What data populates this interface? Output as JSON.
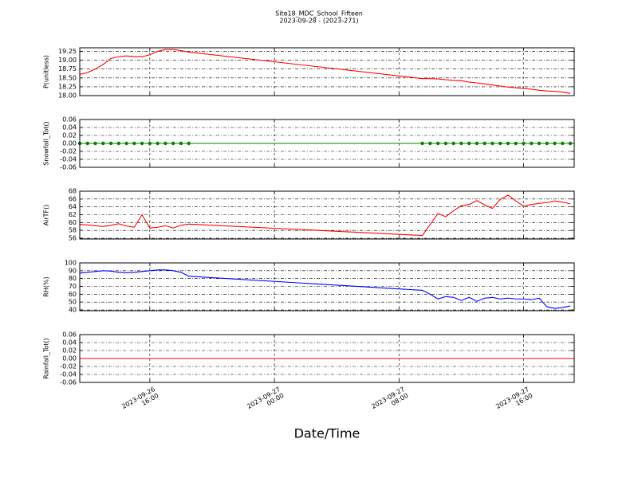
{
  "figure": {
    "title": "Site18_MDC_School_Fifteen",
    "subtitle": "2023-09-28 - (2023-271)",
    "x_label": "Date/Time",
    "xlim": [
      "2023-09-26 11:30",
      "2023-09-27 19:15"
    ],
    "xticks": [
      {
        "value": "2023-09-26 16:00",
        "label": "2023-09-26\n16:00"
      },
      {
        "value": "2023-09-27 00:00",
        "label": "2023-09-27\n00:00"
      },
      {
        "value": "2023-09-27 08:00",
        "label": "2023-09-27\n08:00"
      },
      {
        "value": "2023-09-27 16:00",
        "label": "2023-09-27\n16:00"
      }
    ],
    "grid": true
  },
  "chart_data": [
    {
      "type": "line",
      "y_label": "P(unitless)",
      "ylim": [
        18.0,
        19.35
      ],
      "yticks": [
        {
          "value": 18,
          "label": "18.00"
        },
        18.25,
        {
          "value": 18.5,
          "label": "18.50"
        },
        18.75,
        {
          "value": 19,
          "label": "19.00"
        },
        19.25
      ],
      "x": [
        "2023-09-26 11:30",
        "2023-09-26 12:00",
        "2023-09-26 12:30",
        "2023-09-26 13:00",
        "2023-09-26 13:30",
        "2023-09-26 14:00",
        "2023-09-26 14:30",
        "2023-09-26 15:00",
        "2023-09-26 15:30",
        "2023-09-26 16:00",
        "2023-09-26 16:30",
        "2023-09-26 17:00",
        "2023-09-26 17:30",
        "2023-09-26 18:00",
        "2023-09-26 18:30",
        "2023-09-27 09:30",
        "2023-09-27 10:00",
        "2023-09-27 10:30",
        "2023-09-27 11:00",
        "2023-09-27 11:30",
        "2023-09-27 12:00",
        "2023-09-27 12:30",
        "2023-09-27 13:00",
        "2023-09-27 13:30",
        "2023-09-27 14:00",
        "2023-09-27 14:30",
        "2023-09-27 15:00",
        "2023-09-27 15:30",
        "2023-09-27 16:00",
        "2023-09-27 16:30",
        "2023-09-27 17:00",
        "2023-09-27 17:30",
        "2023-09-27 18:00",
        "2023-09-27 18:30",
        "2023-09-27 19:00"
      ],
      "series": [
        {
          "color": "#ff0000",
          "values": [
            18.6,
            18.65,
            18.75,
            18.88,
            19.05,
            19.1,
            19.12,
            19.1,
            19.1,
            19.15,
            19.25,
            19.3,
            19.3,
            19.27,
            19.23,
            18.48,
            18.48,
            18.47,
            18.45,
            18.43,
            18.42,
            18.38,
            18.36,
            18.33,
            18.3,
            18.27,
            18.24,
            18.22,
            18.2,
            18.18,
            18.15,
            18.13,
            18.12,
            18.1,
            18.06
          ]
        }
      ]
    },
    {
      "type": "line",
      "y_label": "Snowfall_Tot()",
      "ylim": [
        -0.06,
        0.06
      ],
      "yticks": [
        -0.06,
        -0.04,
        -0.02,
        {
          "value": 0,
          "label": "0.00"
        },
        0.02,
        0.04,
        0.06
      ],
      "x": [
        "2023-09-26 11:30",
        "2023-09-26 12:00",
        "2023-09-26 12:30",
        "2023-09-26 13:00",
        "2023-09-26 13:30",
        "2023-09-26 14:00",
        "2023-09-26 14:30",
        "2023-09-26 15:00",
        "2023-09-26 15:30",
        "2023-09-26 16:00",
        "2023-09-26 16:30",
        "2023-09-26 17:00",
        "2023-09-26 17:30",
        "2023-09-26 18:00",
        "2023-09-26 18:30",
        "2023-09-27 09:30",
        "2023-09-27 10:00",
        "2023-09-27 10:30",
        "2023-09-27 11:00",
        "2023-09-27 11:30",
        "2023-09-27 12:00",
        "2023-09-27 12:30",
        "2023-09-27 13:00",
        "2023-09-27 13:30",
        "2023-09-27 14:00",
        "2023-09-27 14:30",
        "2023-09-27 15:00",
        "2023-09-27 15:30",
        "2023-09-27 16:00",
        "2023-09-27 16:30",
        "2023-09-27 17:00",
        "2023-09-27 17:30",
        "2023-09-27 18:00",
        "2023-09-27 18:30",
        "2023-09-27 19:00"
      ],
      "series": [
        {
          "color": "#008000",
          "marker": "o",
          "values": [
            0,
            0,
            0,
            0,
            0,
            0,
            0,
            0,
            0,
            0,
            0,
            0,
            0,
            0,
            0,
            0,
            0,
            0,
            0,
            0,
            0,
            0,
            0,
            0,
            0,
            0,
            0,
            0,
            0,
            0,
            0,
            0,
            0,
            0,
            0
          ]
        }
      ]
    },
    {
      "type": "line",
      "y_label": "AirTF()",
      "ylim": [
        55.8,
        68
      ],
      "yticks": [
        56,
        58,
        60,
        62,
        64,
        66,
        68
      ],
      "x": [
        "2023-09-26 11:30",
        "2023-09-26 12:00",
        "2023-09-26 12:30",
        "2023-09-26 13:00",
        "2023-09-26 13:30",
        "2023-09-26 14:00",
        "2023-09-26 14:30",
        "2023-09-26 15:00",
        "2023-09-26 15:30",
        "2023-09-26 16:00",
        "2023-09-26 16:30",
        "2023-09-26 17:00",
        "2023-09-26 17:30",
        "2023-09-26 18:00",
        "2023-09-26 18:30",
        "2023-09-27 09:30",
        "2023-09-27 10:00",
        "2023-09-27 10:30",
        "2023-09-27 11:00",
        "2023-09-27 11:30",
        "2023-09-27 12:00",
        "2023-09-27 12:30",
        "2023-09-27 13:00",
        "2023-09-27 13:30",
        "2023-09-27 14:00",
        "2023-09-27 14:30",
        "2023-09-27 15:00",
        "2023-09-27 15:30",
        "2023-09-27 16:00",
        "2023-09-27 16:30",
        "2023-09-27 17:00",
        "2023-09-27 17:30",
        "2023-09-27 18:00",
        "2023-09-27 18:30",
        "2023-09-27 19:00"
      ],
      "series": [
        {
          "color": "#ff0000",
          "values": [
            59.5,
            59.4,
            59.2,
            59.0,
            59.3,
            59.7,
            59.1,
            58.8,
            62.0,
            58.6,
            58.8,
            59.2,
            58.6,
            59.3,
            59.6,
            56.7,
            59.5,
            62.3,
            61.5,
            63.0,
            64.3,
            64.6,
            65.6,
            64.5,
            63.6,
            65.9,
            67.0,
            65.5,
            64.2,
            64.6,
            64.9,
            65.1,
            65.5,
            65.2,
            64.8
          ]
        }
      ]
    },
    {
      "type": "line",
      "y_label": "RH(%)",
      "ylim": [
        39,
        100
      ],
      "yticks": [
        40,
        50,
        60,
        70,
        80,
        90,
        100
      ],
      "x": [
        "2023-09-26 11:30",
        "2023-09-26 12:00",
        "2023-09-26 12:30",
        "2023-09-26 13:00",
        "2023-09-26 13:30",
        "2023-09-26 14:00",
        "2023-09-26 14:30",
        "2023-09-26 15:00",
        "2023-09-26 15:30",
        "2023-09-26 16:00",
        "2023-09-26 16:30",
        "2023-09-26 17:00",
        "2023-09-26 17:30",
        "2023-09-26 18:00",
        "2023-09-26 18:30",
        "2023-09-27 09:30",
        "2023-09-27 10:00",
        "2023-09-27 10:30",
        "2023-09-27 11:00",
        "2023-09-27 11:30",
        "2023-09-27 12:00",
        "2023-09-27 12:30",
        "2023-09-27 13:00",
        "2023-09-27 13:30",
        "2023-09-27 14:00",
        "2023-09-27 14:30",
        "2023-09-27 15:00",
        "2023-09-27 15:30",
        "2023-09-27 16:00",
        "2023-09-27 16:30",
        "2023-09-27 17:00",
        "2023-09-27 17:30",
        "2023-09-27 18:00",
        "2023-09-27 18:30",
        "2023-09-27 19:00"
      ],
      "series": [
        {
          "color": "#0000ff",
          "values": [
            87,
            88,
            89,
            90,
            89.5,
            88,
            87.5,
            88,
            89,
            90,
            91,
            91,
            90,
            88,
            83,
            65,
            60,
            54,
            57,
            56,
            52,
            56,
            51,
            55,
            56,
            54,
            55,
            54,
            54,
            53,
            55,
            44,
            42,
            43,
            45
          ]
        }
      ]
    },
    {
      "type": "line",
      "y_label": "Rainfall_Tot()",
      "ylim": [
        -0.06,
        0.06
      ],
      "yticks": [
        -0.06,
        -0.04,
        -0.02,
        {
          "value": 0,
          "label": "0.00"
        },
        0.02,
        0.04,
        0.06
      ],
      "x": [
        "2023-09-26 11:30",
        "2023-09-27 19:15"
      ],
      "series": [
        {
          "color": "#ff0000",
          "values": [
            0,
            0
          ]
        }
      ]
    }
  ]
}
